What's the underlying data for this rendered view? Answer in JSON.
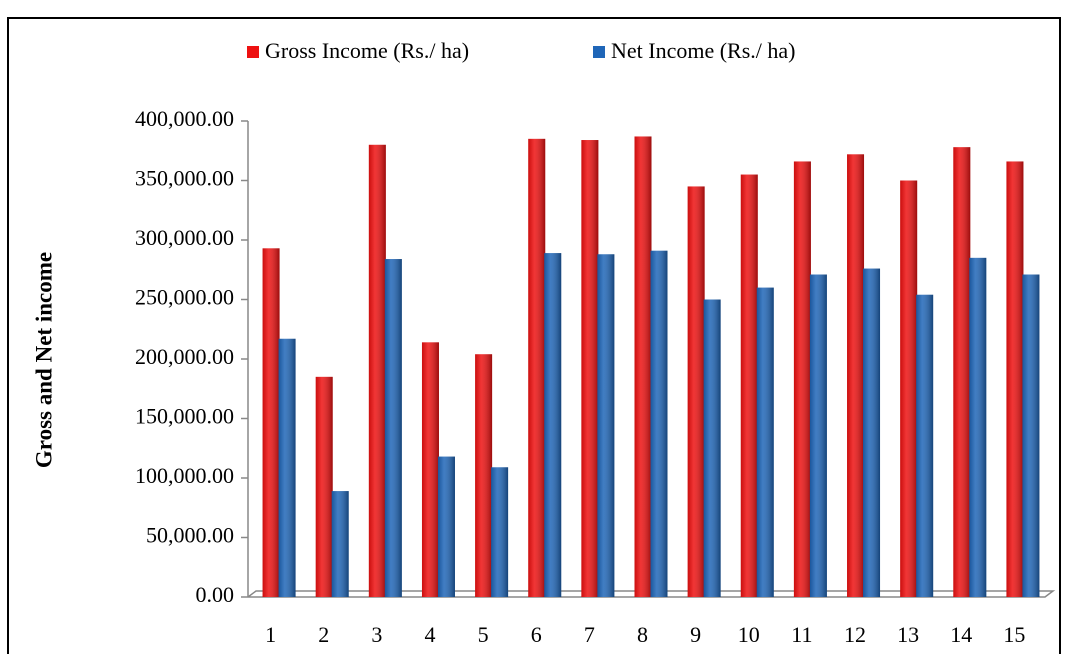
{
  "chart_data": {
    "type": "bar",
    "y_label": "Gross and Net income",
    "categories": [
      "1",
      "2",
      "3",
      "4",
      "5",
      "6",
      "7",
      "8",
      "9",
      "10",
      "11",
      "12",
      "13",
      "14",
      "15"
    ],
    "series": [
      {
        "name": "Gross Income (Rs./ ha)",
        "color": "#ee1111",
        "values": [
          293000,
          185000,
          380000,
          214000,
          204000,
          385000,
          384000,
          387000,
          345000,
          355000,
          366000,
          372000,
          350000,
          378000,
          366000
        ]
      },
      {
        "name": "Net Income (Rs./ ha)",
        "color": "#1f66b8",
        "values": [
          217000,
          89000,
          284000,
          118000,
          109000,
          289000,
          288000,
          291000,
          250000,
          260000,
          271000,
          276000,
          254000,
          285000,
          271000
        ]
      }
    ],
    "ylim": [
      0,
      400000
    ],
    "yticks": [
      {
        "value": 0,
        "label": "0.00"
      },
      {
        "value": 50000,
        "label": "50,000.00"
      },
      {
        "value": 100000,
        "label": "100,000.00"
      },
      {
        "value": 150000,
        "label": "150,000.00"
      },
      {
        "value": 200000,
        "label": "200,000.00"
      },
      {
        "value": 250000,
        "label": "250,000.00"
      },
      {
        "value": 300000,
        "label": "300,000.00"
      },
      {
        "value": 350000,
        "label": "350,000.00"
      },
      {
        "value": 400000,
        "label": "400,000.00"
      }
    ],
    "legend": "top"
  }
}
